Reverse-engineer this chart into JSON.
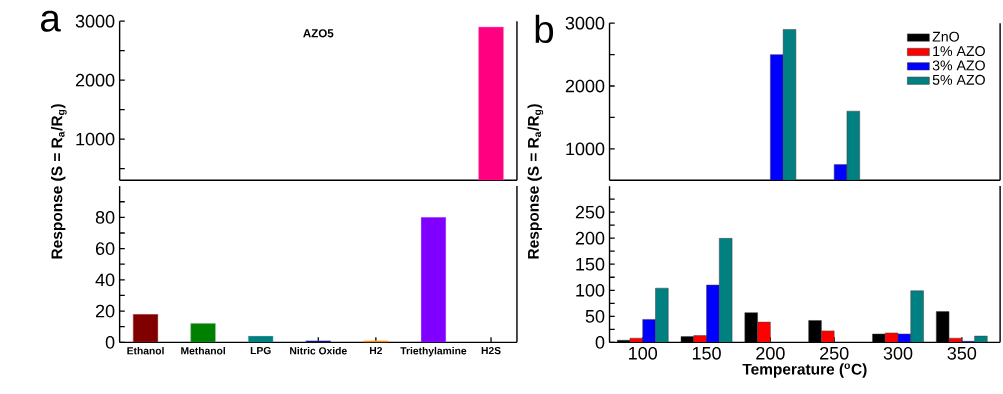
{
  "chart_data": [
    {
      "type": "bar",
      "title": "AZO5",
      "annotations": [
        "a"
      ],
      "categories": [
        null,
        null,
        null,
        null,
        null,
        null,
        null
      ],
      "values": [
        null,
        null,
        null,
        null,
        null,
        null,
        2900
      ],
      "colors": [
        "#800000",
        "#008000",
        "#008080",
        "#000080",
        "#ff8000",
        "#8000ff",
        "#ff0080"
      ],
      "ylim": [
        300,
        3000
      ],
      "yticks": [
        {
          "value": 500,
          "label": null
        },
        1000,
        {
          "value": 1500,
          "label": null
        },
        2000,
        {
          "value": 2500,
          "label": null
        },
        3000
      ],
      "tick_labels": "y"
    },
    {
      "type": "bar",
      "ylabel": "Response (S = R$_{a}$/R$_{g}$)",
      "categories": [
        "Ethanol",
        "Methanol",
        "LPG",
        "Nitric Oxide",
        "H2",
        "Triethylamine",
        "H2S"
      ],
      "values": [
        18,
        12,
        4,
        1,
        1,
        80,
        null
      ],
      "colors": [
        "#800000",
        "#008000",
        "#008080",
        "#000080",
        "#ff8000",
        "#8000ff",
        "#ff0080"
      ],
      "ylim": [
        0,
        100
      ],
      "yticks": [
        0,
        {
          "value": 10,
          "label": null
        },
        20,
        {
          "value": 30,
          "label": null
        },
        40,
        {
          "value": 50,
          "label": null
        },
        60,
        {
          "value": 70,
          "label": null
        },
        80,
        {
          "value": 90,
          "label": null
        }
      ]
    },
    {
      "type": "bar",
      "annotations": [
        "b"
      ],
      "categories": [
        null,
        null,
        null,
        null,
        null,
        null
      ],
      "legend": "top right",
      "tick_labels": "y",
      "series": [
        {
          "name": "ZnO",
          "color": "#000000",
          "values": [
            null,
            null,
            null,
            null,
            null,
            null
          ]
        },
        {
          "name": "1% AZO",
          "color": "#ff0000",
          "values": [
            null,
            null,
            null,
            null,
            null,
            null
          ]
        },
        {
          "name": "3% AZO",
          "color": "#0000ff",
          "values": [
            null,
            null,
            2500,
            750,
            null,
            null
          ]
        },
        {
          "name": "5% AZO",
          "color": "#008080",
          "values": [
            null,
            null,
            2900,
            1600,
            null,
            null
          ]
        }
      ],
      "ylim": [
        500,
        3000
      ],
      "yticks": [
        1000,
        {
          "value": 1500,
          "label": null
        },
        2000,
        {
          "value": 2500,
          "label": null
        },
        3000
      ]
    },
    {
      "type": "bar",
      "ylabel": "Response (S = R$_{a}$/R$_{g}$)",
      "xlabel": "Temperature ($^{o}$C)",
      "categories": [
        "100",
        "150",
        "200",
        "250",
        "300",
        "350"
      ],
      "series": [
        {
          "color": "#000000",
          "values": [
            4,
            11,
            57,
            42,
            16,
            59
          ]
        },
        {
          "color": "#ff0000",
          "values": [
            8,
            13,
            39,
            22,
            18,
            8
          ]
        },
        {
          "color": "#0000ff",
          "values": [
            44,
            110,
            null,
            null,
            16,
            2
          ]
        },
        {
          "color": "#008080",
          "values": [
            104,
            200,
            null,
            null,
            99,
            12
          ]
        }
      ],
      "ylim": [
        0,
        300
      ],
      "yticks": [
        0,
        {
          "value": 25,
          "label": null
        },
        50,
        {
          "value": 75,
          "label": null
        },
        100,
        {
          "value": 125,
          "label": null
        },
        150,
        {
          "value": 175,
          "label": null
        },
        200,
        {
          "value": 225,
          "label": null
        },
        250,
        {
          "value": 275,
          "label": null
        }
      ]
    }
  ]
}
